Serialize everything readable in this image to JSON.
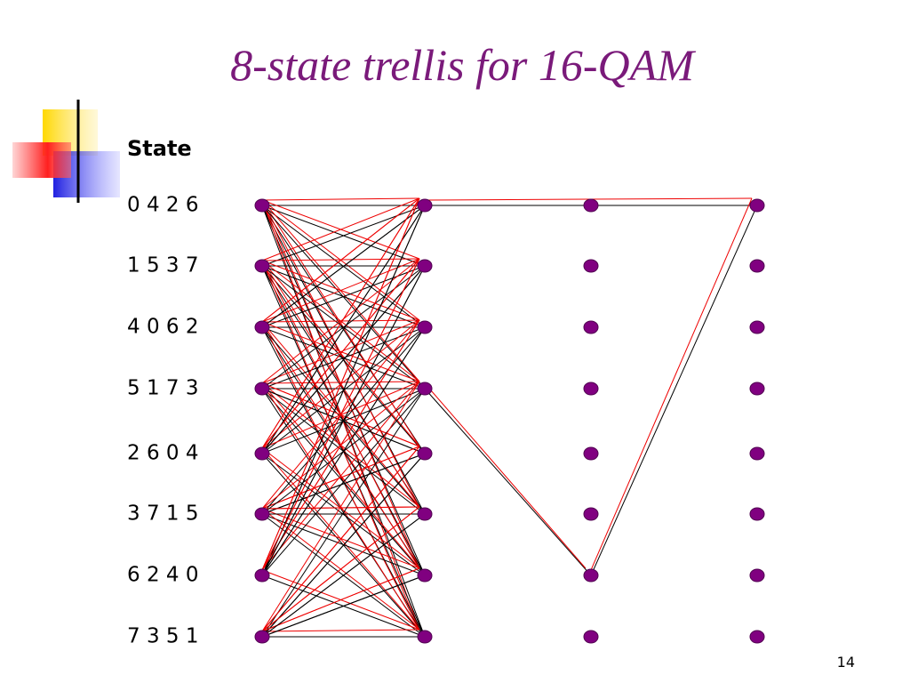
{
  "title": "8-state trellis for 16-QAM",
  "header": "State",
  "states": [
    "0 4 2 6",
    "1 5 3 7",
    "4 0 6 2",
    "5 1 7 3",
    "2 6 0 4",
    "3 7 1 5",
    "6 2 4 0",
    "7 3 5 1"
  ],
  "page_number": "14"
}
